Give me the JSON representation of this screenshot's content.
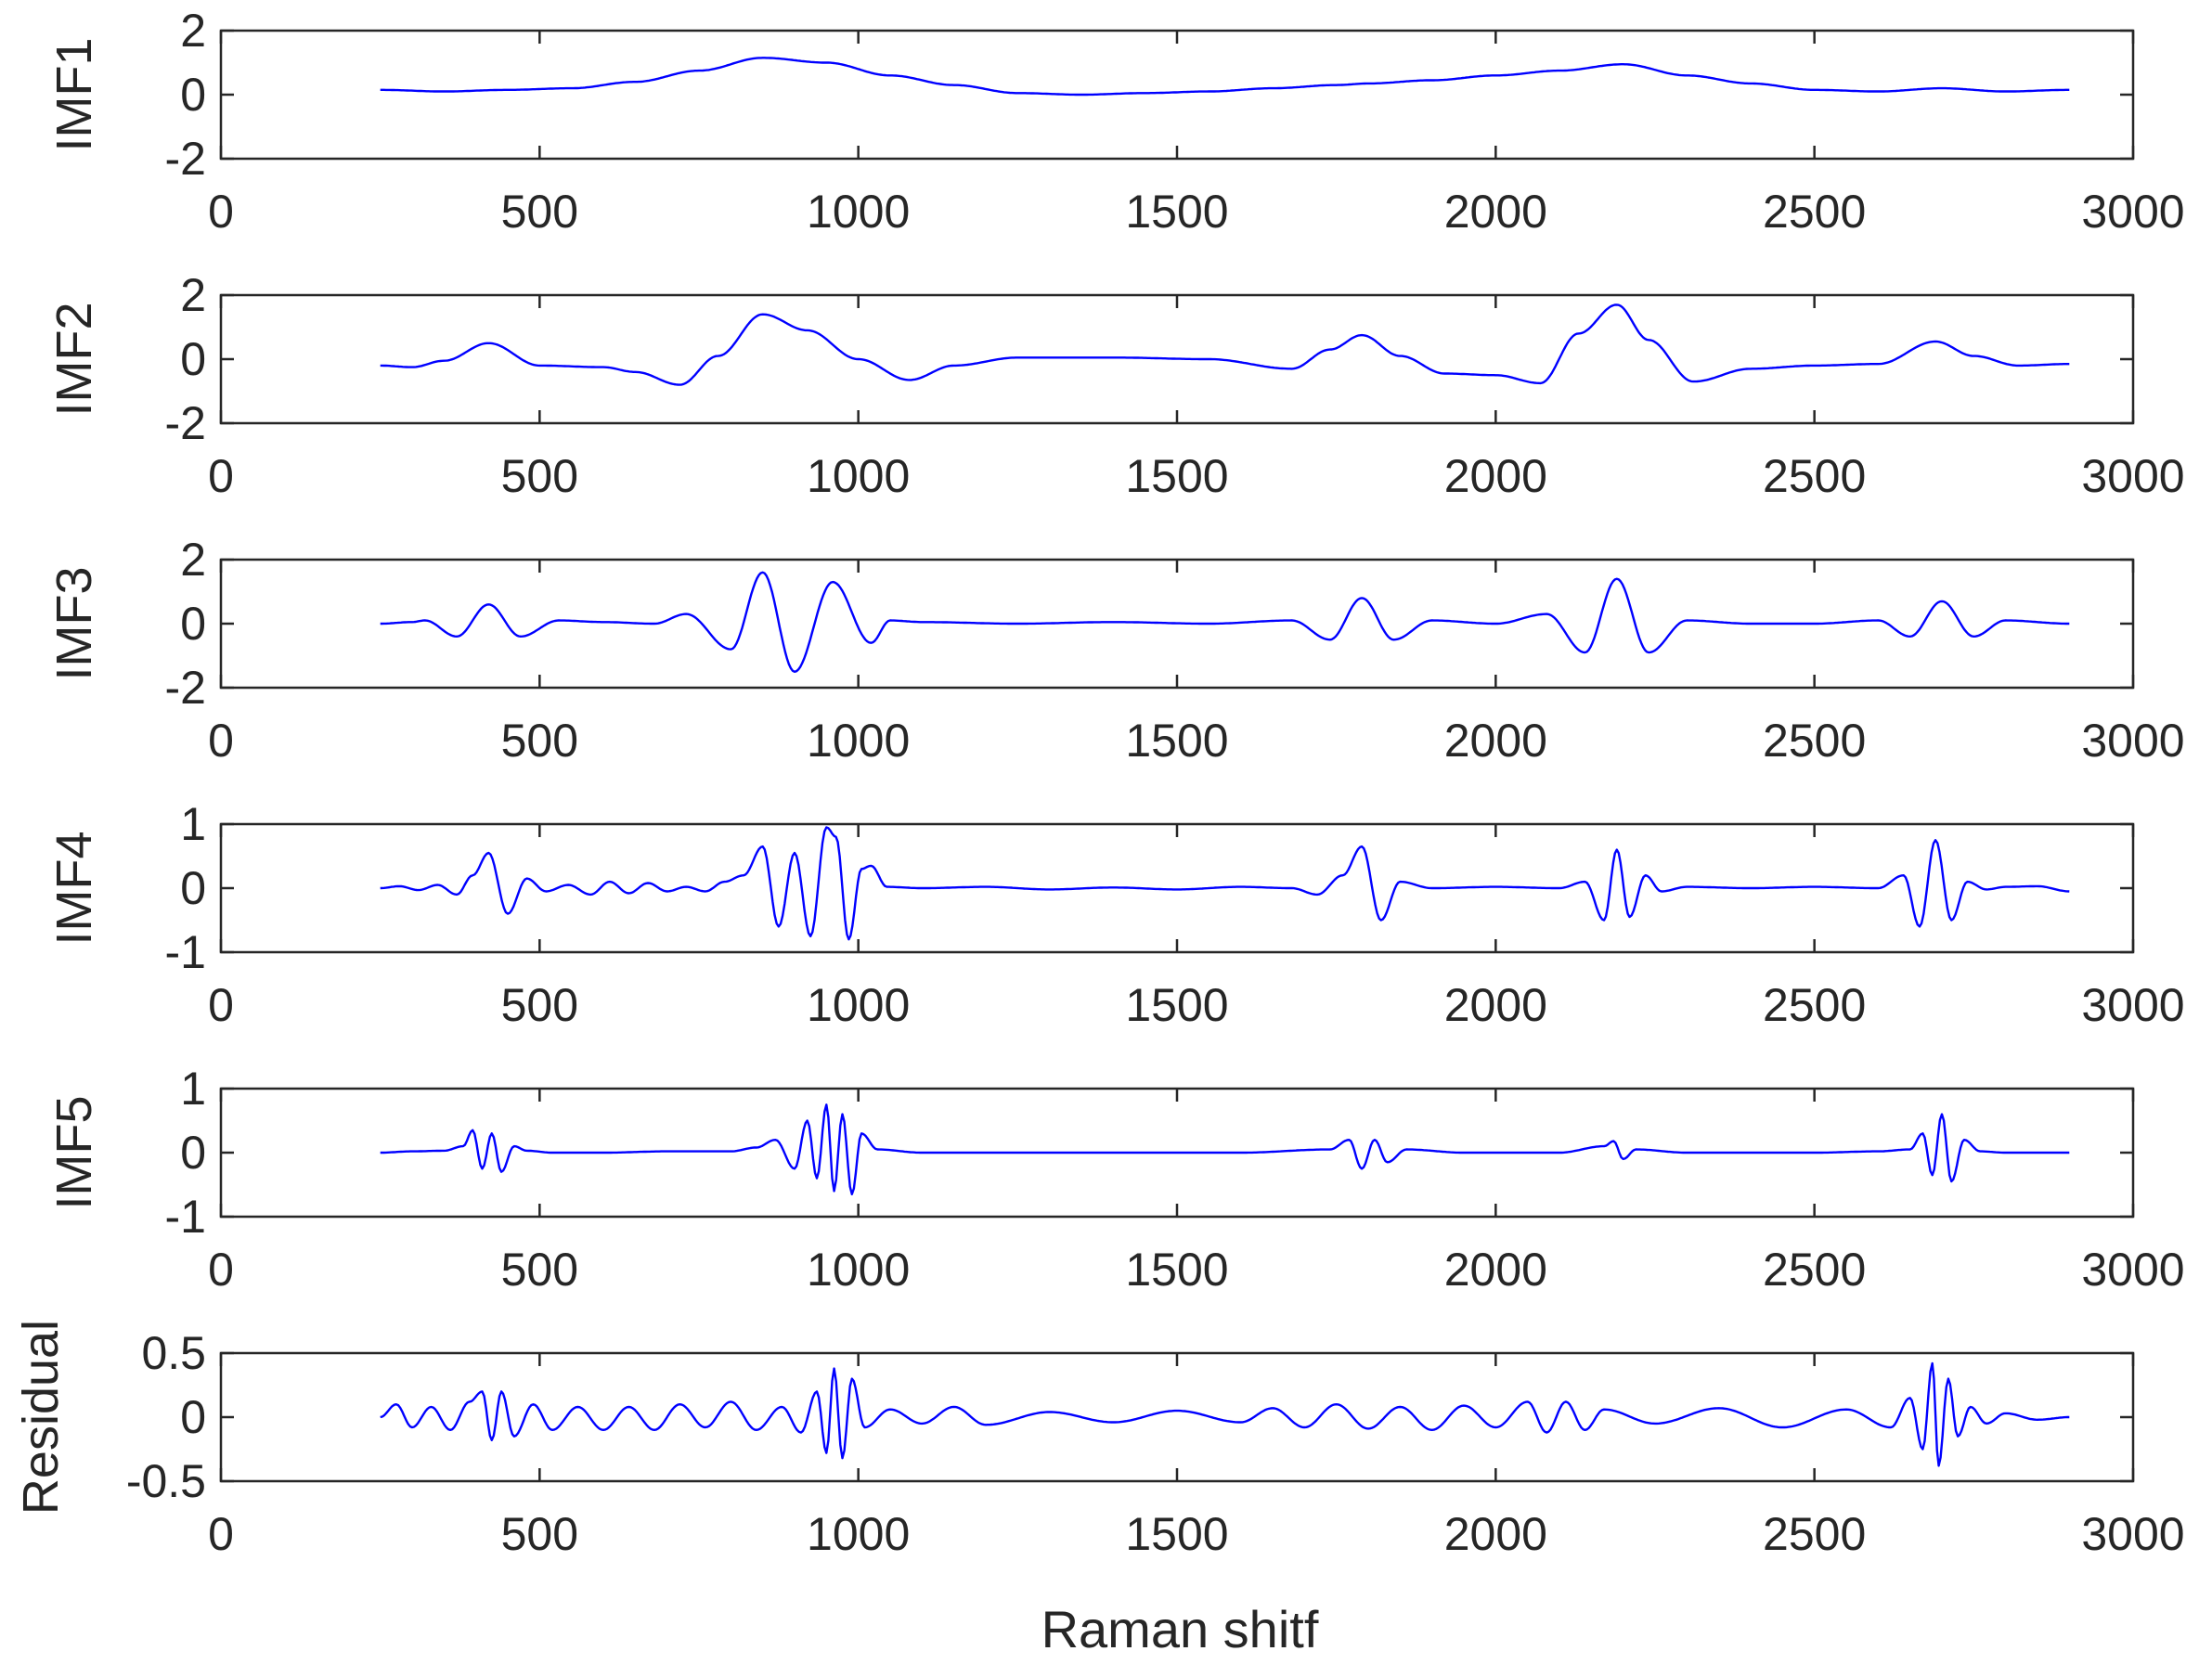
{
  "chart_data": {
    "type": "line",
    "xlabel": "Raman shitf",
    "xlim": [
      0,
      3000
    ],
    "xticks": [
      0,
      500,
      1000,
      1500,
      2000,
      2500,
      3000
    ],
    "line_color": "#0000ff",
    "x_range_of_data": [
      250,
      2900
    ],
    "subplots": [
      {
        "ylabel": "IMF1",
        "ylim": [
          -2,
          2
        ],
        "yticks": [
          -2,
          0,
          2
        ],
        "series": [
          {
            "x": [
              250,
              350,
              450,
              550,
              650,
              750,
              850,
              950,
              1050,
              1150,
              1250,
              1350,
              1450,
              1550,
              1650,
              1750,
              1800,
              1900,
              2000,
              2100,
              2200,
              2300,
              2400,
              2500,
              2600,
              2700,
              2800,
              2900
            ],
            "y": [
              0.15,
              0.1,
              0.15,
              0.2,
              0.4,
              0.75,
              1.15,
              1.0,
              0.6,
              0.3,
              0.05,
              0.0,
              0.05,
              0.1,
              0.2,
              0.3,
              0.35,
              0.45,
              0.6,
              0.75,
              0.95,
              0.6,
              0.35,
              0.15,
              0.1,
              0.2,
              0.1,
              0.15
            ]
          }
        ]
      },
      {
        "ylabel": "IMF2",
        "ylim": [
          -2,
          2
        ],
        "yticks": [
          -2,
          0,
          2
        ],
        "series": [
          {
            "x": [
              250,
              300,
              350,
              420,
              500,
              600,
              650,
              720,
              780,
              850,
              920,
              1000,
              1080,
              1150,
              1250,
              1400,
              1550,
              1680,
              1740,
              1790,
              1850,
              1920,
              2000,
              2070,
              2130,
              2190,
              2240,
              2310,
              2400,
              2500,
              2600,
              2690,
              2750,
              2820,
              2900
            ],
            "y": [
              -0.2,
              -0.25,
              -0.05,
              0.5,
              -0.2,
              -0.25,
              -0.4,
              -0.8,
              0.1,
              1.4,
              0.9,
              0.0,
              -0.65,
              -0.2,
              0.05,
              0.05,
              0.0,
              -0.3,
              0.3,
              0.75,
              0.1,
              -0.45,
              -0.5,
              -0.75,
              0.8,
              1.7,
              0.6,
              -0.7,
              -0.3,
              -0.2,
              -0.15,
              0.55,
              0.1,
              -0.2,
              -0.15
            ]
          }
        ]
      },
      {
        "ylabel": "IMF3",
        "ylim": [
          -2,
          2
        ],
        "yticks": [
          -2,
          0,
          2
        ],
        "series": [
          {
            "x": [
              250,
              300,
              320,
              370,
              420,
              470,
              530,
              600,
              680,
              730,
              800,
              850,
              900,
              960,
              1020,
              1050,
              1100,
              1250,
              1400,
              1550,
              1680,
              1740,
              1790,
              1840,
              1900,
              2000,
              2080,
              2140,
              2190,
              2240,
              2300,
              2400,
              2500,
              2600,
              2650,
              2700,
              2750,
              2800,
              2900
            ],
            "y": [
              0.0,
              0.05,
              0.1,
              -0.4,
              0.6,
              -0.4,
              0.1,
              0.05,
              0.0,
              0.3,
              -0.8,
              1.6,
              -1.5,
              1.3,
              -0.6,
              0.1,
              0.05,
              0.0,
              0.05,
              0.0,
              0.1,
              -0.5,
              0.8,
              -0.5,
              0.1,
              0.0,
              0.3,
              -0.9,
              1.4,
              -0.9,
              0.1,
              0.0,
              0.0,
              0.1,
              -0.4,
              0.7,
              -0.4,
              0.1,
              0.0
            ]
          }
        ]
      },
      {
        "ylabel": "IMF4",
        "ylim": [
          -1,
          1
        ],
        "yticks": [
          -1,
          0,
          1
        ],
        "series": [
          {
            "x": [
              250,
              280,
              310,
              340,
              370,
              395,
              420,
              450,
              480,
              510,
              545,
              580,
              610,
              640,
              670,
              700,
              730,
              760,
              790,
              820,
              850,
              875,
              900,
              925,
              950,
              965,
              985,
              1005,
              1020,
              1045,
              1100,
              1200,
              1300,
              1400,
              1500,
              1600,
              1680,
              1720,
              1760,
              1790,
              1820,
              1850,
              1900,
              2000,
              2100,
              2140,
              2170,
              2190,
              2210,
              2235,
              2260,
              2300,
              2400,
              2500,
              2600,
              2640,
              2665,
              2690,
              2715,
              2740,
              2770,
              2800,
              2850,
              2900
            ],
            "y": [
              0.0,
              0.03,
              -0.03,
              0.05,
              -0.1,
              0.2,
              0.55,
              -0.4,
              0.15,
              -0.05,
              0.05,
              -0.1,
              0.1,
              -0.08,
              0.08,
              -0.05,
              0.02,
              -0.05,
              0.1,
              0.2,
              0.65,
              -0.6,
              0.55,
              -0.75,
              0.95,
              0.8,
              -0.8,
              0.3,
              0.35,
              0.02,
              0.0,
              0.02,
              -0.02,
              0.01,
              -0.02,
              0.02,
              0.0,
              -0.1,
              0.2,
              0.65,
              -0.5,
              0.1,
              0.0,
              0.02,
              0.0,
              0.1,
              -0.5,
              0.6,
              -0.45,
              0.2,
              -0.05,
              0.02,
              0.0,
              0.02,
              0.0,
              0.2,
              -0.6,
              0.75,
              -0.5,
              0.1,
              -0.02,
              0.02,
              0.03,
              -0.05
            ]
          }
        ]
      },
      {
        "ylabel": "IMF5",
        "ylim": [
          -1,
          1
        ],
        "yticks": [
          -1,
          0,
          1
        ],
        "series": [
          {
            "x": [
              250,
              300,
              350,
              380,
              395,
              410,
              425,
              440,
              460,
              480,
              520,
              600,
              700,
              800,
              840,
              870,
              900,
              920,
              935,
              950,
              962,
              975,
              990,
              1005,
              1030,
              1100,
              1200,
              1400,
              1600,
              1740,
              1770,
              1790,
              1810,
              1830,
              1860,
              1950,
              2100,
              2170,
              2185,
              2200,
              2220,
              2300,
              2500,
              2600,
              2650,
              2670,
              2685,
              2700,
              2715,
              2735,
              2760,
              2800,
              2900
            ],
            "y": [
              0.0,
              0.02,
              0.03,
              0.1,
              0.35,
              -0.25,
              0.3,
              -0.3,
              0.1,
              0.03,
              0.0,
              0.0,
              0.02,
              0.02,
              0.08,
              0.2,
              -0.25,
              0.5,
              -0.4,
              0.75,
              -0.6,
              0.6,
              -0.65,
              0.3,
              0.05,
              0.0,
              0.0,
              0.0,
              0.0,
              0.05,
              0.2,
              -0.25,
              0.2,
              -0.15,
              0.05,
              0.0,
              0.0,
              0.1,
              0.18,
              -0.1,
              0.05,
              0.0,
              0.0,
              0.02,
              0.05,
              0.3,
              -0.35,
              0.6,
              -0.45,
              0.2,
              0.02,
              0.0,
              0.0
            ]
          }
        ]
      },
      {
        "ylabel": "Residual",
        "ylim": [
          -0.5,
          0.5
        ],
        "yticks": [
          -0.5,
          0,
          0.5
        ],
        "series": [
          {
            "x": [
              250,
              275,
              300,
              330,
              360,
              390,
              410,
              425,
              440,
              460,
              490,
              520,
              560,
              600,
              640,
              680,
              720,
              760,
              800,
              840,
              880,
              910,
              935,
              950,
              962,
              975,
              990,
              1010,
              1050,
              1100,
              1150,
              1200,
              1300,
              1400,
              1500,
              1600,
              1650,
              1700,
              1750,
              1800,
              1850,
              1900,
              1950,
              2000,
              2050,
              2080,
              2110,
              2140,
              2170,
              2250,
              2350,
              2450,
              2550,
              2620,
              2650,
              2670,
              2685,
              2695,
              2710,
              2725,
              2745,
              2770,
              2800,
              2850,
              2900
            ],
            "y": [
              0.0,
              0.1,
              -0.08,
              0.08,
              -0.1,
              0.12,
              0.2,
              -0.18,
              0.2,
              -0.15,
              0.1,
              -0.1,
              0.08,
              -0.1,
              0.08,
              -0.1,
              0.1,
              -0.08,
              0.12,
              -0.1,
              0.08,
              -0.12,
              0.2,
              -0.28,
              0.38,
              -0.32,
              0.3,
              -0.08,
              0.06,
              -0.05,
              0.08,
              -0.06,
              0.04,
              -0.04,
              0.05,
              -0.04,
              0.07,
              -0.08,
              0.1,
              -0.09,
              0.08,
              -0.1,
              0.09,
              -0.08,
              0.12,
              -0.12,
              0.12,
              -0.1,
              0.06,
              -0.05,
              0.07,
              -0.08,
              0.06,
              -0.08,
              0.15,
              -0.25,
              0.42,
              -0.38,
              0.3,
              -0.15,
              0.08,
              -0.05,
              0.03,
              -0.02,
              0.0
            ]
          }
        ]
      }
    ]
  }
}
